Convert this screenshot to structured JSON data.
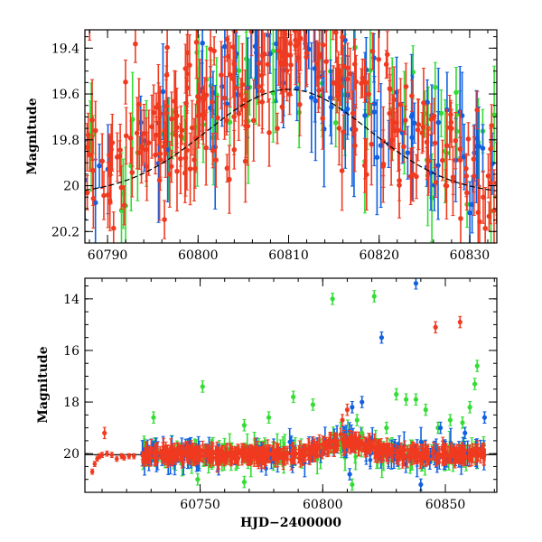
{
  "colors": {
    "green": "#33dd33",
    "blue": "#1060e0",
    "red": "#f03a20",
    "model": "#000000"
  },
  "chart_data": [
    {
      "type": "scatter",
      "panel": "top",
      "ylabel": "Magnitude",
      "xlim": [
        60787.5,
        60833
      ],
      "ylim": [
        20.25,
        19.32
      ],
      "y_inverted": true,
      "xticks": [
        60790,
        60800,
        60810,
        60820,
        60830
      ],
      "yticks": [
        19.4,
        19.6,
        19.8,
        20,
        20.2
      ],
      "ytick_labels": [
        "19.4",
        "19.6",
        "19.8",
        "20",
        "20.2"
      ],
      "model_curve": {
        "style": "dashed",
        "baseline_mag": 20.04,
        "peak_mag": 19.58,
        "peak_time": 60810,
        "width": 9
      },
      "series": [
        {
          "color": "green",
          "approx_points": 70
        },
        {
          "color": "blue",
          "approx_points": 90
        },
        {
          "color": "red",
          "approx_points": 280
        }
      ]
    },
    {
      "type": "scatter",
      "panel": "bottom",
      "xlabel": "HJD−2400000",
      "ylabel": "Magnitude",
      "xlim": [
        60703,
        60871
      ],
      "ylim": [
        21.5,
        13.2
      ],
      "y_inverted": true,
      "xticks": [
        60750,
        60800,
        60850
      ],
      "yticks": [
        14,
        16,
        18,
        20
      ],
      "model_curve": {
        "style": "solid",
        "baseline_mag": 20.04,
        "peak_mag": 19.58,
        "peak_time": 60810,
        "width": 9
      },
      "outliers": [
        {
          "color": "green",
          "x": 60731,
          "y": 18.6
        },
        {
          "color": "green",
          "x": 60751,
          "y": 17.4
        },
        {
          "color": "green",
          "x": 60768,
          "y": 18.9
        },
        {
          "color": "green",
          "x": 60778,
          "y": 18.6
        },
        {
          "color": "green",
          "x": 60788,
          "y": 17.8
        },
        {
          "color": "green",
          "x": 60796,
          "y": 18.1
        },
        {
          "color": "green",
          "x": 60804,
          "y": 14.0
        },
        {
          "color": "green",
          "x": 60814,
          "y": 18.7
        },
        {
          "color": "green",
          "x": 60816,
          "y": 19.2
        },
        {
          "color": "green",
          "x": 60821,
          "y": 13.9
        },
        {
          "color": "green",
          "x": 60826,
          "y": 19.0
        },
        {
          "color": "green",
          "x": 60830,
          "y": 17.7
        },
        {
          "color": "green",
          "x": 60834,
          "y": 17.9
        },
        {
          "color": "green",
          "x": 60838,
          "y": 17.9
        },
        {
          "color": "green",
          "x": 60842,
          "y": 18.3
        },
        {
          "color": "green",
          "x": 60847,
          "y": 19.0
        },
        {
          "color": "green",
          "x": 60852,
          "y": 18.7
        },
        {
          "color": "green",
          "x": 60857,
          "y": 18.8
        },
        {
          "color": "green",
          "x": 60860,
          "y": 18.2
        },
        {
          "color": "green",
          "x": 60862,
          "y": 17.3
        },
        {
          "color": "green",
          "x": 60863,
          "y": 16.6
        },
        {
          "color": "green",
          "x": 60749,
          "y": 21.0
        },
        {
          "color": "green",
          "x": 60768,
          "y": 21.1
        },
        {
          "color": "green",
          "x": 60812,
          "y": 21.2
        },
        {
          "color": "blue",
          "x": 60812,
          "y": 18.2
        },
        {
          "color": "blue",
          "x": 60816,
          "y": 18.0
        },
        {
          "color": "blue",
          "x": 60824,
          "y": 15.5
        },
        {
          "color": "blue",
          "x": 60838,
          "y": 13.4
        },
        {
          "color": "blue",
          "x": 60848,
          "y": 19.0
        },
        {
          "color": "blue",
          "x": 60858,
          "y": 19.2
        },
        {
          "color": "blue",
          "x": 60866,
          "y": 18.6
        },
        {
          "color": "blue",
          "x": 60840,
          "y": 21.2
        },
        {
          "color": "blue",
          "x": 60811,
          "y": 20.8
        },
        {
          "color": "red",
          "x": 60711,
          "y": 19.2
        },
        {
          "color": "red",
          "x": 60846,
          "y": 15.1
        },
        {
          "color": "red",
          "x": 60856,
          "y": 14.9
        },
        {
          "color": "red",
          "x": 60808,
          "y": 18.7
        },
        {
          "color": "red",
          "x": 60810,
          "y": 18.3
        }
      ],
      "bulk": {
        "x_range": [
          60726,
          60866
        ],
        "mag_center": 20.04,
        "scatter": 0.18
      },
      "red_early_points": [
        {
          "x": 60706,
          "y": 20.7
        },
        {
          "x": 60707,
          "y": 20.4
        },
        {
          "x": 60708,
          "y": 20.2
        },
        {
          "x": 60709,
          "y": 20.1
        },
        {
          "x": 60710,
          "y": 20.05
        },
        {
          "x": 60712,
          "y": 20.0
        },
        {
          "x": 60714,
          "y": 20.05
        },
        {
          "x": 60716,
          "y": 20.2
        },
        {
          "x": 60718,
          "y": 20.1
        },
        {
          "x": 60719,
          "y": 20.15
        },
        {
          "x": 60721,
          "y": 20.1
        },
        {
          "x": 60723,
          "y": 20.1
        }
      ]
    }
  ]
}
